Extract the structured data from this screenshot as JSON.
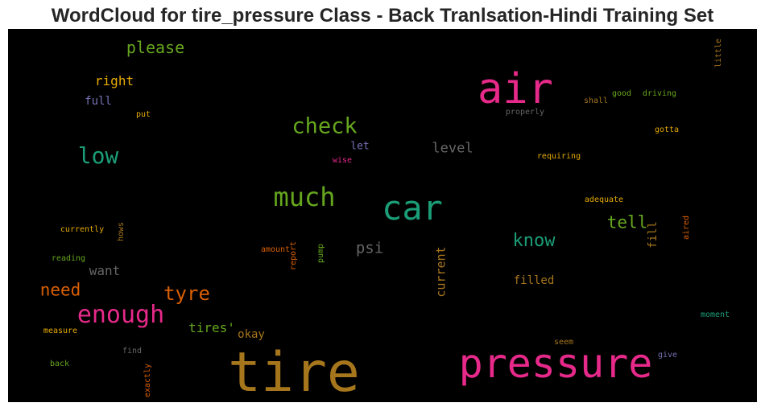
{
  "chart_data": {
    "type": "wordcloud",
    "title": "WordCloud for tire_pressure Class - Back Tranlsation-Hindi Training Set",
    "background": "#000000",
    "palette": [
      "#e7298a",
      "#d95f02",
      "#1b9e77",
      "#66a61e",
      "#a6761d",
      "#7570b3",
      "#666666",
      "#e6ab02"
    ],
    "words": [
      {
        "text": "tire",
        "color": "#a6761d",
        "orientation": "horizontal"
      },
      {
        "text": "pressure",
        "color": "#e7298a",
        "orientation": "horizontal"
      },
      {
        "text": "air",
        "color": "#e7298a",
        "orientation": "horizontal"
      },
      {
        "text": "car",
        "color": "#1b9e77",
        "orientation": "horizontal"
      },
      {
        "text": "much",
        "color": "#66a61e",
        "orientation": "horizontal"
      },
      {
        "text": "check",
        "color": "#66a61e",
        "orientation": "horizontal"
      },
      {
        "text": "enough",
        "color": "#e7298a",
        "orientation": "horizontal"
      },
      {
        "text": "low",
        "color": "#1b9e77",
        "orientation": "horizontal"
      },
      {
        "text": "tyre",
        "color": "#d95f02",
        "orientation": "horizontal"
      },
      {
        "text": "know",
        "color": "#1b9e77",
        "orientation": "horizontal"
      },
      {
        "text": "need",
        "color": "#d95f02",
        "orientation": "horizontal"
      },
      {
        "text": "please",
        "color": "#66a61e",
        "orientation": "horizontal"
      },
      {
        "text": "tell",
        "color": "#66a61e",
        "orientation": "horizontal"
      },
      {
        "text": "psi",
        "color": "#666666",
        "orientation": "horizontal"
      },
      {
        "text": "level",
        "color": "#666666",
        "orientation": "horizontal"
      },
      {
        "text": "tires'",
        "color": "#66a61e",
        "orientation": "horizontal"
      },
      {
        "text": "right",
        "color": "#e6ab02",
        "orientation": "horizontal"
      },
      {
        "text": "want",
        "color": "#666666",
        "orientation": "horizontal"
      },
      {
        "text": "current",
        "color": "#a6761d",
        "orientation": "vertical"
      },
      {
        "text": "filled",
        "color": "#a6761d",
        "orientation": "horizontal"
      },
      {
        "text": "fill",
        "color": "#a6761d",
        "orientation": "vertical"
      },
      {
        "text": "full",
        "color": "#7570b3",
        "orientation": "horizontal"
      },
      {
        "text": "okay",
        "color": "#a6761d",
        "orientation": "horizontal"
      },
      {
        "text": "let",
        "color": "#7570b3",
        "orientation": "horizontal"
      },
      {
        "text": "put",
        "color": "#e6ab02",
        "orientation": "horizontal"
      },
      {
        "text": "properly",
        "color": "#666666",
        "orientation": "horizontal"
      },
      {
        "text": "shall",
        "color": "#a6761d",
        "orientation": "horizontal"
      },
      {
        "text": "good",
        "color": "#66a61e",
        "orientation": "horizontal"
      },
      {
        "text": "driving",
        "color": "#66a61e",
        "orientation": "horizontal"
      },
      {
        "text": "little",
        "color": "#a6761d",
        "orientation": "vertical"
      },
      {
        "text": "gotta",
        "color": "#e6ab02",
        "orientation": "horizontal"
      },
      {
        "text": "requiring",
        "color": "#e6ab02",
        "orientation": "horizontal"
      },
      {
        "text": "wise",
        "color": "#e7298a",
        "orientation": "horizontal"
      },
      {
        "text": "adequate",
        "color": "#e6ab02",
        "orientation": "horizontal"
      },
      {
        "text": "aired",
        "color": "#d95f02",
        "orientation": "vertical"
      },
      {
        "text": "currently",
        "color": "#e6ab02",
        "orientation": "horizontal"
      },
      {
        "text": "hows",
        "color": "#a6761d",
        "orientation": "vertical"
      },
      {
        "text": "amount",
        "color": "#d95f02",
        "orientation": "horizontal"
      },
      {
        "text": "report",
        "color": "#d95f02",
        "orientation": "vertical"
      },
      {
        "text": "pump",
        "color": "#66a61e",
        "orientation": "vertical"
      },
      {
        "text": "reading",
        "color": "#66a61e",
        "orientation": "horizontal"
      },
      {
        "text": "measure",
        "color": "#e6ab02",
        "orientation": "horizontal"
      },
      {
        "text": "find",
        "color": "#666666",
        "orientation": "horizontal"
      },
      {
        "text": "back",
        "color": "#66a61e",
        "orientation": "horizontal"
      },
      {
        "text": "exactly",
        "color": "#d95f02",
        "orientation": "vertical"
      },
      {
        "text": "seem",
        "color": "#a6761d",
        "orientation": "horizontal"
      },
      {
        "text": "give",
        "color": "#7570b3",
        "orientation": "horizontal"
      },
      {
        "text": "moment",
        "color": "#1b9e77",
        "orientation": "horizontal"
      }
    ]
  }
}
